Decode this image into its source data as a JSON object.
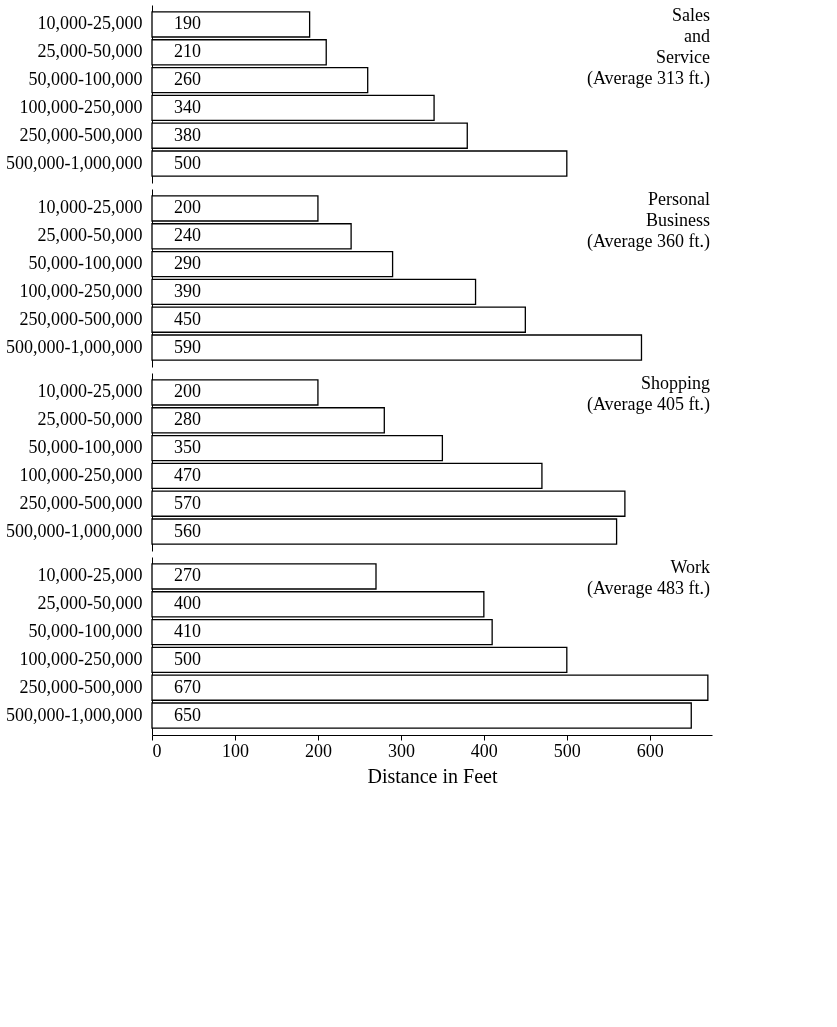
{
  "chart_data": [
    {
      "type": "bar",
      "orientation": "horizontal",
      "categories": [
        "10,000-25,000",
        "25,000-50,000",
        "50,000-100,000",
        "100,000-250,000",
        "250,000-500,000",
        "500,000-1,000,000"
      ],
      "values": [
        190,
        210,
        260,
        340,
        380,
        500
      ],
      "color": "#ffffff",
      "data_labels": true,
      "tick_labels": "y",
      "annotations": [
        "Sales\nand\nService\n(Average 313 ft.)"
      ]
    },
    {
      "type": "bar",
      "orientation": "horizontal",
      "categories": [
        "10,000-25,000",
        "25,000-50,000",
        "50,000-100,000",
        "100,000-250,000",
        "250,000-500,000",
        "500,000-1,000,000"
      ],
      "values": [
        200,
        240,
        290,
        390,
        450,
        590
      ],
      "color": "#ffffff",
      "data_labels": true,
      "tick_labels": "y",
      "annotations": [
        "Personal\nBusiness\n(Average 360 ft.)"
      ]
    },
    {
      "type": "bar",
      "orientation": "horizontal",
      "categories": [
        "10,000-25,000",
        "25,000-50,000",
        "50,000-100,000",
        "100,000-250,000",
        "250,000-500,000",
        "500,000-1,000,000"
      ],
      "values": [
        200,
        280,
        350,
        470,
        570,
        560
      ],
      "color": "#ffffff",
      "data_labels": true,
      "tick_labels": "y",
      "annotations": [
        "Shopping\n(Average 405 ft.)"
      ]
    },
    {
      "type": "bar",
      "orientation": "horizontal",
      "categories": [
        "10,000-25,000",
        "25,000-50,000",
        "50,000-100,000",
        "100,000-250,000",
        "250,000-500,000",
        "500,000-1,000,000"
      ],
      "values": [
        270,
        400,
        410,
        500,
        670,
        650
      ],
      "color": "#ffffff",
      "xlim": [
        0,
        675
      ],
      "xticks": [
        0,
        100,
        200,
        300,
        400,
        500,
        600
      ],
      "xlabel": "Distance in Feet",
      "data_labels": true,
      "annotations": [
        "Work\n(Average 483 ft.)"
      ]
    }
  ]
}
